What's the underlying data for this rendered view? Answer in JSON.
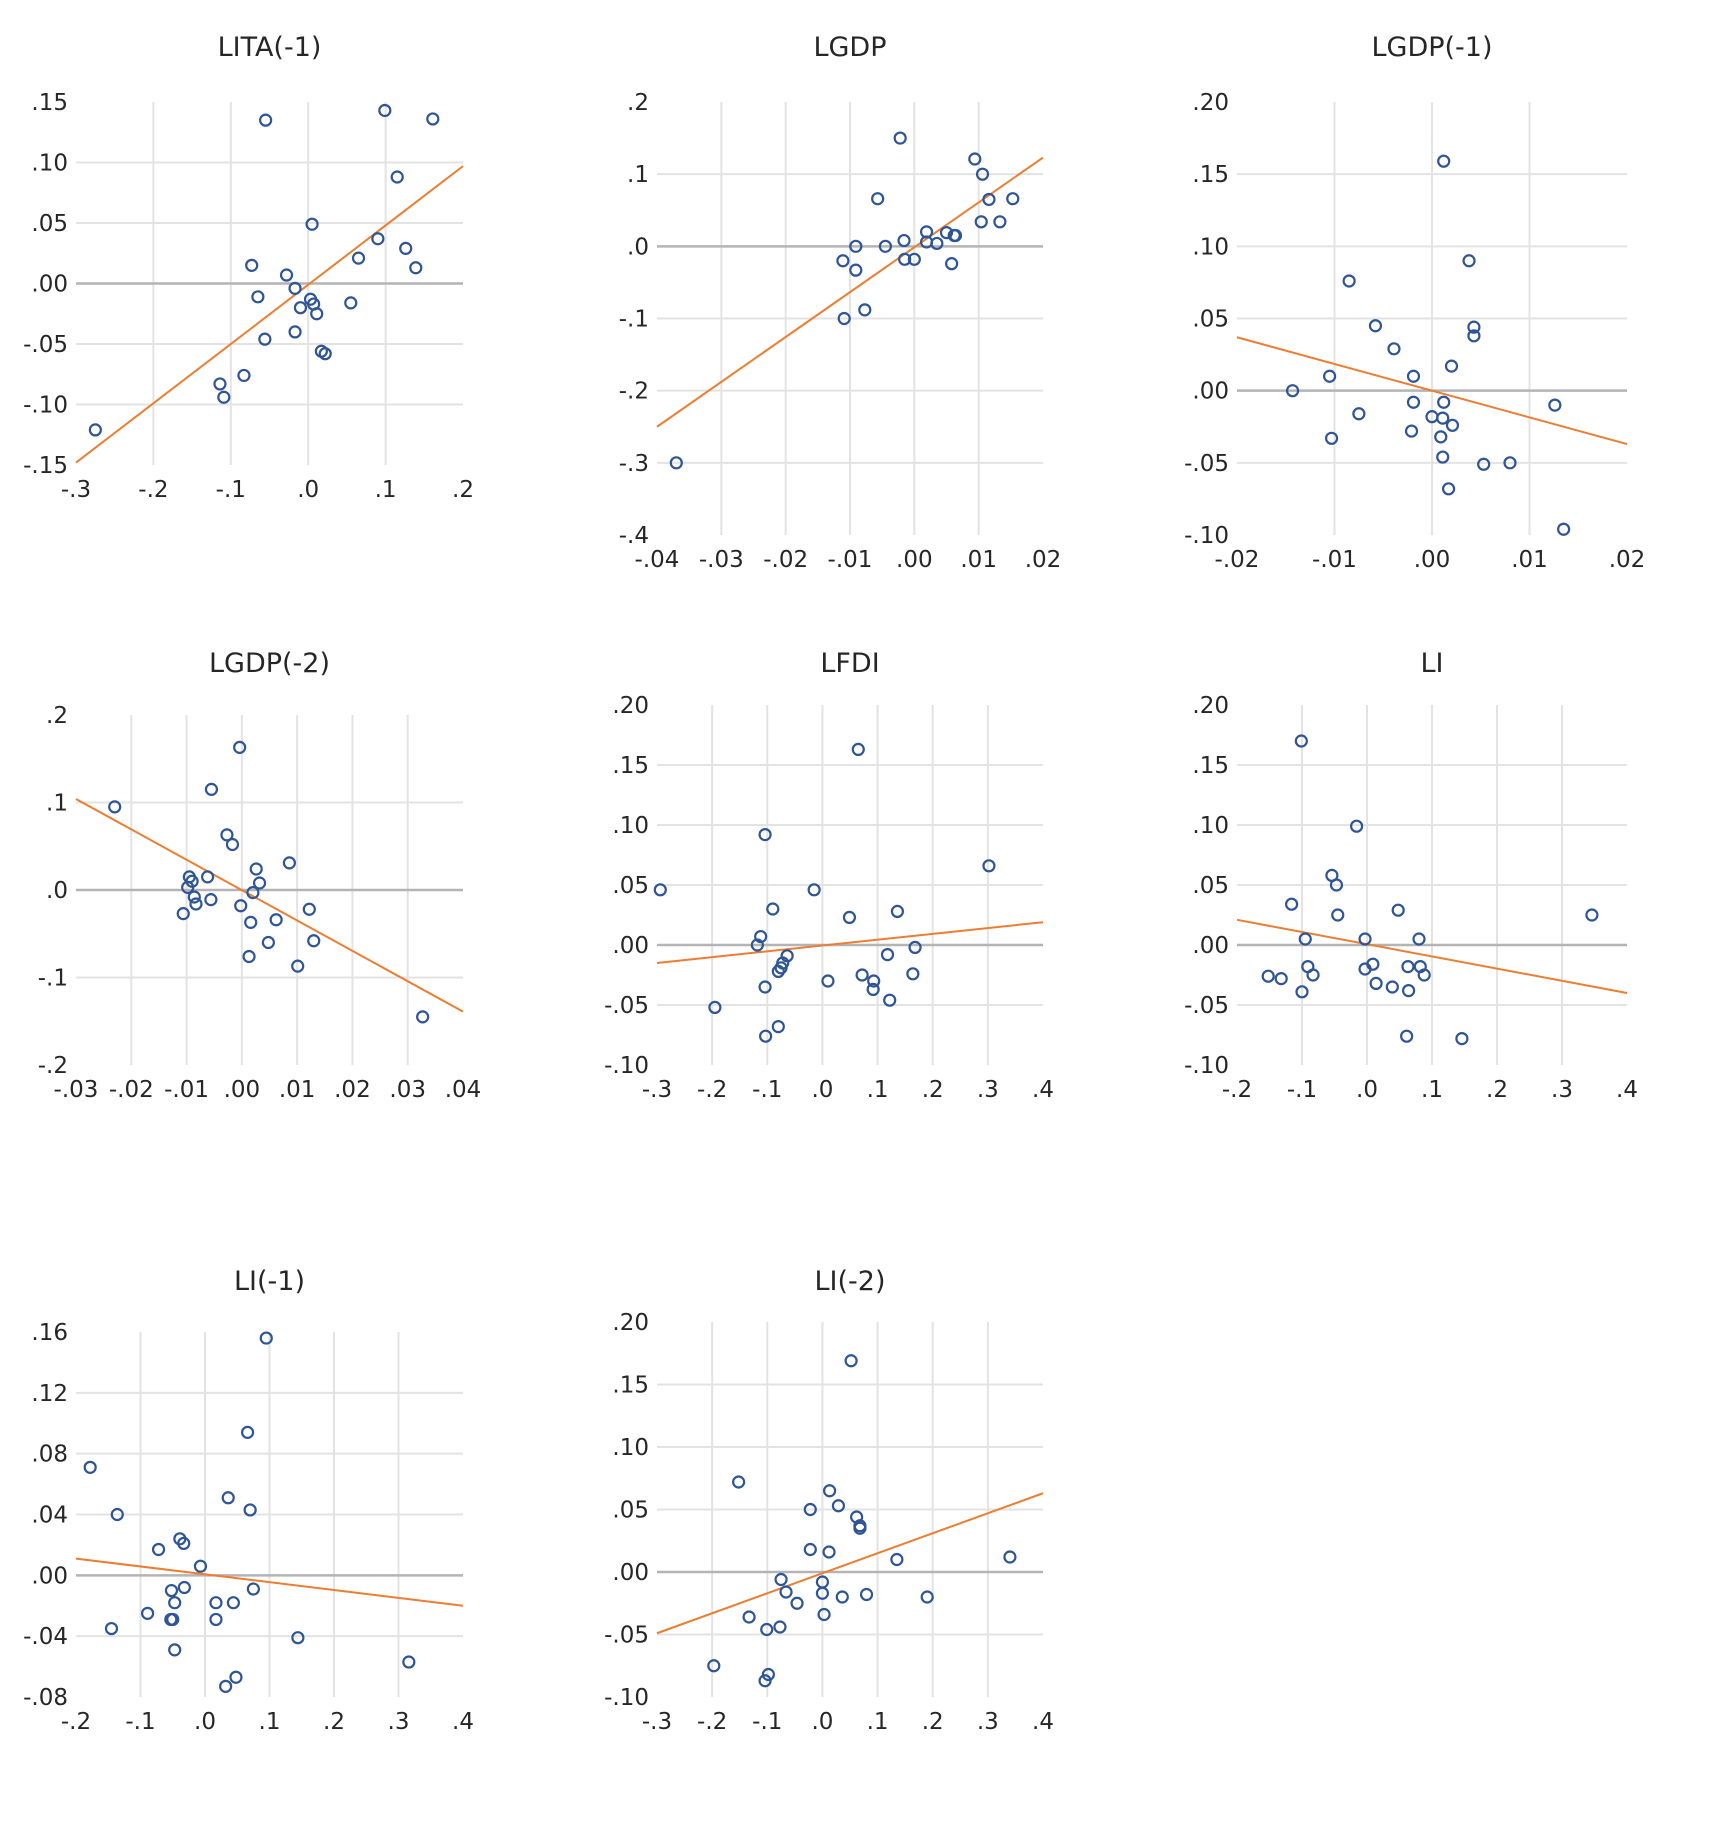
{
  "chart_data": [
    {
      "type": "scatter",
      "title": "LITA(-1)",
      "xlabel": "",
      "ylabel": "",
      "xlim": [
        -0.3,
        0.2
      ],
      "ylim": [
        -0.15,
        0.15
      ],
      "xticks": [
        -0.3,
        -0.2,
        -0.1,
        0.0,
        0.1,
        0.2
      ],
      "xtick_labels": [
        "-.3",
        "-.2",
        "-.1",
        ".0",
        ".1",
        ".2"
      ],
      "yticks": [
        -0.15,
        -0.1,
        -0.05,
        0.0,
        0.05,
        0.1,
        0.15
      ],
      "ytick_labels": [
        "-.15",
        "-.10",
        "-.05",
        ".00",
        ".05",
        ".10",
        ".15"
      ],
      "grid": true,
      "zero_line": true,
      "points": [
        [
          -0.275,
          -0.121
        ],
        [
          -0.055,
          0.135
        ],
        [
          0.099,
          0.143
        ],
        [
          0.161,
          0.136
        ],
        [
          0.115,
          0.088
        ],
        [
          0.005,
          0.049
        ],
        [
          0.09,
          0.037
        ],
        [
          0.126,
          0.029
        ],
        [
          0.065,
          0.021
        ],
        [
          0.139,
          0.013
        ],
        [
          -0.073,
          0.015
        ],
        [
          -0.028,
          0.007
        ],
        [
          -0.017,
          -0.004
        ],
        [
          -0.065,
          -0.011
        ],
        [
          0.003,
          -0.013
        ],
        [
          0.007,
          -0.017
        ],
        [
          -0.01,
          -0.02
        ],
        [
          0.011,
          -0.025
        ],
        [
          0.055,
          -0.016
        ],
        [
          -0.017,
          -0.04
        ],
        [
          -0.056,
          -0.046
        ],
        [
          0.017,
          -0.056
        ],
        [
          0.022,
          -0.058
        ],
        [
          -0.083,
          -0.076
        ],
        [
          -0.114,
          -0.083
        ],
        [
          -0.109,
          -0.094
        ]
      ],
      "trendline": {
        "x": [
          -0.3,
          0.2
        ],
        "y": [
          -0.148,
          0.097
        ]
      },
      "marker_color": "#2f5597",
      "trend_color": "#ed7d31"
    },
    {
      "type": "scatter",
      "title": "LGDP",
      "xlabel": "",
      "ylabel": "",
      "xlim": [
        -0.04,
        0.02
      ],
      "ylim": [
        -0.4,
        0.2
      ],
      "xticks": [
        -0.04,
        -0.03,
        -0.02,
        -0.01,
        0.0,
        0.01,
        0.02
      ],
      "xtick_labels": [
        "-.04",
        "-.03",
        "-.02",
        "-.01",
        ".00",
        ".01",
        ".02"
      ],
      "yticks": [
        -0.4,
        -0.3,
        -0.2,
        -0.1,
        0.0,
        0.1,
        0.2
      ],
      "ytick_labels": [
        "-.4",
        "-.3",
        "-.2",
        "-.1",
        ".0",
        ".1",
        ".2"
      ],
      "grid": true,
      "zero_line": true,
      "points": [
        [
          -0.037,
          -0.3
        ],
        [
          -0.0022,
          0.15
        ],
        [
          0.0094,
          0.121
        ],
        [
          0.0106,
          0.1
        ],
        [
          -0.0057,
          0.066
        ],
        [
          0.0116,
          0.065
        ],
        [
          0.0153,
          0.066
        ],
        [
          0.0104,
          0.034
        ],
        [
          0.0133,
          0.034
        ],
        [
          0.0019,
          0.02
        ],
        [
          0.005,
          0.019
        ],
        [
          0.0062,
          0.015
        ],
        [
          0.0064,
          0.015
        ],
        [
          -0.0016,
          0.008
        ],
        [
          0.0019,
          0.006
        ],
        [
          0.0035,
          0.004
        ],
        [
          -0.0045,
          0.0
        ],
        [
          -0.0091,
          0.0
        ],
        [
          -0.0111,
          -0.02
        ],
        [
          -0.0091,
          -0.033
        ],
        [
          -0.0015,
          -0.018
        ],
        [
          0.0,
          -0.018
        ],
        [
          0.0058,
          -0.024
        ],
        [
          -0.0109,
          -0.1
        ],
        [
          -0.0077,
          -0.088
        ]
      ],
      "trendline": {
        "x": [
          -0.04,
          0.02
        ],
        "y": [
          -0.25,
          0.123
        ]
      },
      "marker_color": "#2f5597",
      "trend_color": "#ed7d31"
    },
    {
      "type": "scatter",
      "title": "LGDP(-1)",
      "xlabel": "",
      "ylabel": "",
      "xlim": [
        -0.02,
        0.02
      ],
      "ylim": [
        -0.1,
        0.2
      ],
      "xticks": [
        -0.02,
        -0.01,
        0.0,
        0.01,
        0.02
      ],
      "xtick_labels": [
        "-.02",
        "-.01",
        ".00",
        ".01",
        ".02"
      ],
      "yticks": [
        -0.1,
        -0.05,
        0.0,
        0.05,
        0.1,
        0.15,
        0.2
      ],
      "ytick_labels": [
        "-.10",
        "-.05",
        ".00",
        ".05",
        ".10",
        ".15",
        ".20"
      ],
      "grid": true,
      "zero_line": true,
      "points": [
        [
          0.0012,
          0.159
        ],
        [
          0.0038,
          0.09
        ],
        [
          -0.0085,
          0.076
        ],
        [
          -0.0058,
          0.045
        ],
        [
          0.0043,
          0.044
        ],
        [
          0.0043,
          0.038
        ],
        [
          -0.0039,
          0.029
        ],
        [
          0.002,
          0.017
        ],
        [
          -0.0105,
          0.01
        ],
        [
          -0.0019,
          0.01
        ],
        [
          -0.0143,
          0.0
        ],
        [
          -0.0019,
          -0.008
        ],
        [
          0.0012,
          -0.008
        ],
        [
          0.0126,
          -0.01
        ],
        [
          -0.0075,
          -0.016
        ],
        [
          0.0,
          -0.018
        ],
        [
          0.0011,
          -0.019
        ],
        [
          0.0021,
          -0.024
        ],
        [
          -0.0021,
          -0.028
        ],
        [
          -0.0103,
          -0.033
        ],
        [
          0.0009,
          -0.032
        ],
        [
          0.0011,
          -0.046
        ],
        [
          0.0053,
          -0.051
        ],
        [
          0.008,
          -0.05
        ],
        [
          0.0017,
          -0.068
        ],
        [
          0.0135,
          -0.096
        ]
      ],
      "trendline": {
        "x": [
          -0.02,
          0.02
        ],
        "y": [
          0.037,
          -0.037
        ]
      },
      "marker_color": "#2f5597",
      "trend_color": "#ed7d31"
    },
    {
      "type": "scatter",
      "title": "LGDP(-2)",
      "xlabel": "",
      "ylabel": "",
      "xlim": [
        -0.03,
        0.04
      ],
      "ylim": [
        -0.2,
        0.2
      ],
      "xticks": [
        -0.03,
        -0.02,
        -0.01,
        0.0,
        0.01,
        0.02,
        0.03,
        0.04
      ],
      "xtick_labels": [
        "-.03",
        "-.02",
        "-.01",
        ".00",
        ".01",
        ".02",
        ".03",
        ".04"
      ],
      "yticks": [
        -0.2,
        -0.1,
        0.0,
        0.1,
        0.2
      ],
      "ytick_labels": [
        "-.2",
        "-.1",
        ".0",
        ".1",
        ".2"
      ],
      "grid": true,
      "zero_line": true,
      "points": [
        [
          -0.023,
          0.095
        ],
        [
          -0.0004,
          0.163
        ],
        [
          -0.0055,
          0.115
        ],
        [
          -0.0027,
          0.063
        ],
        [
          -0.0017,
          0.052
        ],
        [
          0.0086,
          0.031
        ],
        [
          0.0026,
          0.024
        ],
        [
          0.0032,
          0.008
        ],
        [
          0.002,
          -0.003
        ],
        [
          -0.0095,
          0.015
        ],
        [
          -0.009,
          0.01
        ],
        [
          -0.0062,
          0.015
        ],
        [
          -0.0098,
          0.003
        ],
        [
          -0.0086,
          -0.008
        ],
        [
          -0.0083,
          -0.016
        ],
        [
          -0.0056,
          -0.011
        ],
        [
          -0.0106,
          -0.027
        ],
        [
          -0.0002,
          -0.018
        ],
        [
          0.0016,
          -0.037
        ],
        [
          0.0062,
          -0.034
        ],
        [
          0.0122,
          -0.022
        ],
        [
          0.0048,
          -0.06
        ],
        [
          0.013,
          -0.058
        ],
        [
          0.0013,
          -0.076
        ],
        [
          0.0101,
          -0.087
        ],
        [
          0.0327,
          -0.145
        ]
      ],
      "trendline": {
        "x": [
          -0.03,
          0.04
        ],
        "y": [
          0.104,
          -0.139
        ]
      },
      "marker_color": "#2f5597",
      "trend_color": "#ed7d31"
    },
    {
      "type": "scatter",
      "title": "LFDI",
      "xlabel": "",
      "ylabel": "",
      "xlim": [
        -0.3,
        0.4
      ],
      "ylim": [
        -0.1,
        0.2
      ],
      "xticks": [
        -0.3,
        -0.2,
        -0.1,
        0.0,
        0.1,
        0.2,
        0.3,
        0.4
      ],
      "xtick_labels": [
        "-.3",
        "-.2",
        "-.1",
        ".0",
        ".1",
        ".2",
        ".3",
        ".4"
      ],
      "yticks": [
        -0.1,
        -0.05,
        0.0,
        0.05,
        0.1,
        0.15,
        0.2
      ],
      "ytick_labels": [
        "-.10",
        "-.05",
        ".00",
        ".05",
        ".10",
        ".15",
        ".20"
      ],
      "grid": true,
      "zero_line": true,
      "points": [
        [
          0.065,
          0.163
        ],
        [
          -0.104,
          0.092
        ],
        [
          0.302,
          0.066
        ],
        [
          -0.294,
          0.046
        ],
        [
          -0.015,
          0.046
        ],
        [
          -0.09,
          0.03
        ],
        [
          0.136,
          0.028
        ],
        [
          0.049,
          0.023
        ],
        [
          -0.112,
          0.007
        ],
        [
          -0.118,
          0.0
        ],
        [
          0.168,
          -0.002
        ],
        [
          0.118,
          -0.008
        ],
        [
          -0.064,
          -0.009
        ],
        [
          -0.072,
          -0.015
        ],
        [
          -0.075,
          -0.019
        ],
        [
          -0.08,
          -0.022
        ],
        [
          0.01,
          -0.03
        ],
        [
          0.072,
          -0.025
        ],
        [
          0.093,
          -0.03
        ],
        [
          0.164,
          -0.024
        ],
        [
          0.092,
          -0.037
        ],
        [
          -0.104,
          -0.035
        ],
        [
          0.122,
          -0.046
        ],
        [
          -0.195,
          -0.052
        ],
        [
          -0.08,
          -0.068
        ],
        [
          -0.103,
          -0.076
        ]
      ],
      "trendline": {
        "x": [
          -0.3,
          0.4
        ],
        "y": [
          -0.015,
          0.019
        ]
      },
      "marker_color": "#2f5597",
      "trend_color": "#ed7d31"
    },
    {
      "type": "scatter",
      "title": "LI",
      "xlabel": "",
      "ylabel": "",
      "xlim": [
        -0.2,
        0.4
      ],
      "ylim": [
        -0.1,
        0.2
      ],
      "xticks": [
        -0.2,
        -0.1,
        0.0,
        0.1,
        0.2,
        0.3,
        0.4
      ],
      "xtick_labels": [
        "-.2",
        "-.1",
        ".0",
        ".1",
        ".2",
        ".3",
        ".4"
      ],
      "yticks": [
        -0.1,
        -0.05,
        0.0,
        0.05,
        0.1,
        0.15,
        0.2
      ],
      "ytick_labels": [
        "-.10",
        "-.05",
        ".00",
        ".05",
        ".10",
        ".15",
        ".20"
      ],
      "grid": true,
      "zero_line": true,
      "points": [
        [
          -0.101,
          0.17
        ],
        [
          -0.016,
          0.099
        ],
        [
          -0.054,
          0.058
        ],
        [
          -0.047,
          0.05
        ],
        [
          -0.116,
          0.034
        ],
        [
          -0.045,
          0.025
        ],
        [
          0.048,
          0.029
        ],
        [
          0.346,
          0.025
        ],
        [
          -0.095,
          0.005
        ],
        [
          -0.003,
          0.005
        ],
        [
          0.08,
          0.005
        ],
        [
          -0.091,
          -0.018
        ],
        [
          -0.083,
          -0.025
        ],
        [
          -0.003,
          -0.02
        ],
        [
          0.009,
          -0.016
        ],
        [
          0.063,
          -0.018
        ],
        [
          0.082,
          -0.018
        ],
        [
          0.088,
          -0.025
        ],
        [
          -0.152,
          -0.026
        ],
        [
          -0.132,
          -0.028
        ],
        [
          0.014,
          -0.032
        ],
        [
          0.039,
          -0.035
        ],
        [
          0.064,
          -0.038
        ],
        [
          -0.1,
          -0.039
        ],
        [
          0.061,
          -0.076
        ],
        [
          0.146,
          -0.078
        ]
      ],
      "trendline": {
        "x": [
          -0.2,
          0.4
        ],
        "y": [
          0.021,
          -0.04
        ]
      },
      "marker_color": "#2f5597",
      "trend_color": "#ed7d31"
    },
    {
      "type": "scatter",
      "title": "LI(-1)",
      "xlabel": "",
      "ylabel": "",
      "xlim": [
        -0.2,
        0.4
      ],
      "ylim": [
        -0.08,
        0.16
      ],
      "xticks": [
        -0.2,
        -0.1,
        0.0,
        0.1,
        0.2,
        0.3,
        0.4
      ],
      "xtick_labels": [
        "-.2",
        "-.1",
        ".0",
        ".1",
        ".2",
        ".3",
        ".4"
      ],
      "yticks": [
        -0.08,
        -0.04,
        0.0,
        0.04,
        0.08,
        0.12,
        0.16
      ],
      "ytick_labels": [
        "-.08",
        "-.04",
        ".00",
        ".04",
        ".08",
        ".12",
        ".16"
      ],
      "grid": true,
      "zero_line": true,
      "points": [
        [
          0.095,
          0.156
        ],
        [
          0.066,
          0.094
        ],
        [
          -0.178,
          0.071
        ],
        [
          0.036,
          0.051
        ],
        [
          0.07,
          0.043
        ],
        [
          -0.136,
          0.04
        ],
        [
          -0.039,
          0.024
        ],
        [
          -0.033,
          0.021
        ],
        [
          -0.072,
          0.017
        ],
        [
          -0.007,
          0.006
        ],
        [
          -0.052,
          -0.01
        ],
        [
          -0.032,
          -0.008
        ],
        [
          0.075,
          -0.009
        ],
        [
          -0.047,
          -0.018
        ],
        [
          0.017,
          -0.018
        ],
        [
          0.044,
          -0.018
        ],
        [
          -0.089,
          -0.025
        ],
        [
          -0.053,
          -0.029
        ],
        [
          -0.05,
          -0.029
        ],
        [
          0.017,
          -0.029
        ],
        [
          -0.145,
          -0.035
        ],
        [
          0.144,
          -0.041
        ],
        [
          -0.047,
          -0.049
        ],
        [
          0.316,
          -0.057
        ],
        [
          0.048,
          -0.067
        ],
        [
          0.032,
          -0.073
        ]
      ],
      "trendline": {
        "x": [
          -0.2,
          0.4
        ],
        "y": [
          0.011,
          -0.02
        ]
      },
      "marker_color": "#2f5597",
      "trend_color": "#ed7d31"
    },
    {
      "type": "scatter",
      "title": "LI(-2)",
      "xlabel": "",
      "ylabel": "",
      "xlim": [
        -0.3,
        0.4
      ],
      "ylim": [
        -0.1,
        0.2
      ],
      "xticks": [
        -0.3,
        -0.2,
        -0.1,
        0.0,
        0.1,
        0.2,
        0.3,
        0.4
      ],
      "xtick_labels": [
        "-.3",
        "-.2",
        "-.1",
        ".0",
        ".1",
        ".2",
        ".3",
        ".4"
      ],
      "yticks": [
        -0.1,
        -0.05,
        0.0,
        0.05,
        0.1,
        0.15,
        0.2
      ],
      "ytick_labels": [
        "-.10",
        "-.05",
        ".00",
        ".05",
        ".10",
        ".15",
        ".20"
      ],
      "grid": true,
      "zero_line": true,
      "points": [
        [
          0.052,
          0.169
        ],
        [
          -0.152,
          0.072
        ],
        [
          0.013,
          0.065
        ],
        [
          -0.022,
          0.05
        ],
        [
          0.029,
          0.053
        ],
        [
          0.062,
          0.044
        ],
        [
          0.068,
          0.037
        ],
        [
          0.068,
          0.035
        ],
        [
          -0.022,
          0.018
        ],
        [
          0.012,
          0.016
        ],
        [
          0.135,
          0.01
        ],
        [
          0.34,
          0.012
        ],
        [
          -0.075,
          -0.006
        ],
        [
          0.0,
          -0.008
        ],
        [
          -0.066,
          -0.016
        ],
        [
          0.0,
          -0.017
        ],
        [
          0.036,
          -0.02
        ],
        [
          0.08,
          -0.018
        ],
        [
          0.19,
          -0.02
        ],
        [
          -0.046,
          -0.025
        ],
        [
          0.003,
          -0.034
        ],
        [
          -0.133,
          -0.036
        ],
        [
          -0.101,
          -0.046
        ],
        [
          -0.077,
          -0.044
        ],
        [
          -0.197,
          -0.075
        ],
        [
          -0.098,
          -0.082
        ],
        [
          -0.104,
          -0.087
        ]
      ],
      "trendline": {
        "x": [
          -0.3,
          0.4
        ],
        "y": [
          -0.049,
          0.063
        ]
      },
      "marker_color": "#2f5597",
      "trend_color": "#ed7d31"
    }
  ]
}
